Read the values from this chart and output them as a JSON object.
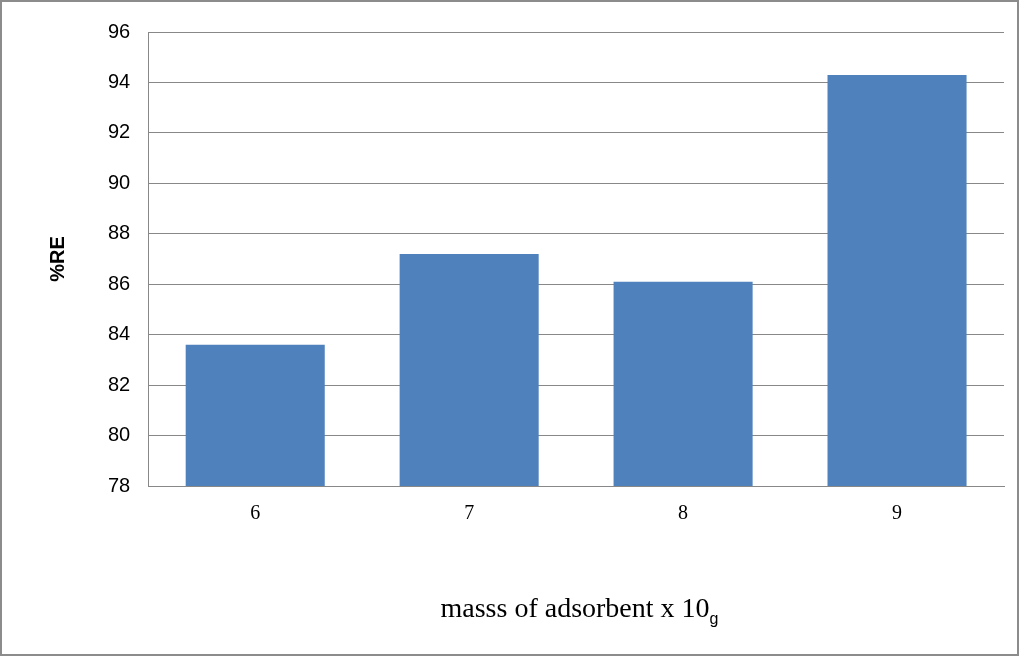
{
  "chart_data": {
    "type": "bar",
    "xlabel": "masss of adsorbent  x 10$_{g}$",
    "ylabel": "%RE",
    "categories": [
      "6",
      "7",
      "8",
      "9"
    ],
    "values": [
      83.6,
      87.2,
      86.1,
      94.3
    ],
    "color": "#4f81bd",
    "ylim": [
      78,
      96
    ],
    "yticks": [
      78,
      80,
      82,
      84,
      86,
      88,
      90,
      92,
      94,
      96
    ],
    "grid": "y",
    "legend": false
  }
}
